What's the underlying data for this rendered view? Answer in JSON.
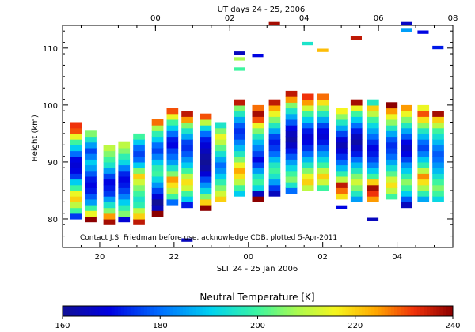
{
  "chart_data": {
    "type": "heatmap",
    "title": "UT days 24 - 25, 2006",
    "xlabel": "SLT 24 - 25 Jan 2006",
    "ylabel": "Height (km)",
    "bottom_axis": {
      "tick_labels": [
        "20",
        "22",
        "00",
        "02",
        "04"
      ],
      "tick_values_hours": [
        20,
        22,
        24,
        26,
        28
      ]
    },
    "top_axis": {
      "tick_labels": [
        "00",
        "02",
        "04",
        "06",
        "08"
      ],
      "tick_values_hours": [
        0,
        2,
        4,
        6,
        8
      ]
    },
    "xlim_hours": [
      19.0,
      29.5
    ],
    "ylim": [
      75,
      114
    ],
    "y_tick_labels": [
      "80",
      "90",
      "100",
      "110"
    ],
    "y_tick_values": [
      80,
      90,
      100,
      110
    ],
    "note": "Contact J.S. Friedman before use, acknowledge CDB, plotted 5-Apr-2011",
    "colorbar": {
      "title": "Neutral Temperature [K]",
      "range": [
        160,
        240
      ],
      "tick_labels": [
        "160",
        "180",
        "200",
        "220",
        "240"
      ],
      "tick_values": [
        160,
        180,
        200,
        220,
        240
      ]
    },
    "profile_width_hours": 0.3,
    "profiles": [
      {
        "t": 19.2,
        "h0": 80.0,
        "vals": [
          175,
          200,
          210,
          220,
          215,
          200,
          190,
          175,
          170,
          168,
          170,
          180,
          190,
          200,
          215,
          230,
          232
        ]
      },
      {
        "t": 19.6,
        "h0": 79.5,
        "vals": [
          240,
          215,
          200,
          185,
          178,
          172,
          170,
          172,
          178,
          185,
          190,
          182,
          176,
          185,
          195,
          205
        ]
      },
      {
        "t": 20.1,
        "h0": 79.0,
        "vals": [
          238,
          225,
          205,
          195,
          185,
          175,
          172,
          170,
          176,
          185,
          195,
          200,
          205,
          210
        ]
      },
      {
        "t": 20.5,
        "h0": 79.5,
        "vals": [
          168,
          205,
          198,
          190,
          182,
          176,
          172,
          170,
          173,
          182,
          192,
          198,
          205,
          210
        ]
      },
      {
        "t": 20.9,
        "h0": 79.0,
        "vals": [
          236,
          220,
          210,
          198,
          195,
          200,
          205,
          212,
          220,
          205,
          190,
          180,
          176,
          180,
          190,
          200
        ]
      },
      {
        "t": 21.4,
        "h0": 80.5,
        "vals": [
          240,
          165,
          160,
          168,
          176,
          184,
          192,
          200,
          198,
          190,
          182,
          176,
          180,
          190,
          198,
          208,
          228
        ]
      },
      {
        "t": 21.8,
        "h0": 82.5,
        "vals": [
          180,
          200,
          210,
          218,
          225,
          205,
          195,
          185,
          180,
          176,
          170,
          172,
          180,
          190,
          200,
          215,
          230
        ]
      },
      {
        "t": 22.2,
        "h0": 82.0,
        "vals": [
          172,
          190,
          200,
          212,
          218,
          210,
          200,
          190,
          184,
          178,
          174,
          176,
          186,
          195,
          205,
          225,
          236
        ]
      },
      {
        "t": 22.7,
        "h0": 81.5,
        "vals": [
          240,
          220,
          205,
          192,
          184,
          176,
          168,
          162,
          160,
          162,
          165,
          168,
          172,
          180,
          192,
          210,
          230
        ]
      },
      {
        "t": 23.1,
        "h0": 83.0,
        "vals": [
          220,
          212,
          205,
          198,
          190,
          184,
          180,
          186,
          194,
          202,
          210,
          215,
          205,
          195
        ]
      },
      {
        "t": 23.6,
        "h0": 84.0,
        "vals": [
          190,
          200,
          210,
          218,
          224,
          215,
          205,
          196,
          188,
          182,
          176,
          174,
          178,
          186,
          196,
          205,
          236
        ]
      },
      {
        "t": 24.1,
        "h0": 83.0,
        "vals": [
          240,
          165,
          192,
          200,
          195,
          185,
          176,
          170,
          176,
          182,
          188,
          196,
          205,
          215,
          230,
          238,
          228
        ]
      },
      {
        "t": 24.55,
        "h0": 84.0,
        "vals": [
          165,
          175,
          185,
          195,
          200,
          196,
          188,
          180,
          175,
          172,
          176,
          186,
          196,
          205,
          215,
          224,
          236
        ]
      },
      {
        "t": 25.0,
        "h0": 84.5,
        "vals": [
          180,
          195,
          205,
          200,
          192,
          185,
          178,
          172,
          166,
          162,
          165,
          170,
          178,
          186,
          195,
          205,
          225,
          236
        ]
      },
      {
        "t": 25.45,
        "h0": 85.0,
        "vals": [
          210,
          220,
          215,
          205,
          196,
          188,
          180,
          174,
          170,
          168,
          172,
          180,
          190,
          200,
          212,
          225,
          232
        ]
      },
      {
        "t": 25.85,
        "h0": 85.0,
        "vals": [
          200,
          212,
          220,
          210,
          200,
          192,
          185,
          178,
          172,
          168,
          170,
          176,
          186,
          196,
          206,
          218,
          228
        ]
      },
      {
        "t": 26.35,
        "h0": 83.5,
        "vals": [
          218,
          228,
          236,
          210,
          198,
          188,
          180,
          174,
          168,
          164,
          168,
          176,
          186,
          196,
          206,
          216
        ]
      },
      {
        "t": 26.75,
        "h0": 83.0,
        "vals": [
          185,
          196,
          205,
          212,
          205,
          196,
          188,
          180,
          172,
          166,
          162,
          165,
          172,
          180,
          190,
          200,
          215,
          238
        ]
      },
      {
        "t": 27.2,
        "h0": 83.0,
        "vals": [
          225,
          232,
          238,
          220,
          200,
          190,
          182,
          176,
          172,
          170,
          174,
          180,
          186,
          192,
          200,
          210,
          220,
          196
        ]
      },
      {
        "t": 27.7,
        "h0": 83.5,
        "vals": [
          200,
          210,
          218,
          212,
          202,
          194,
          186,
          180,
          176,
          174,
          178,
          186,
          196,
          206,
          215,
          225,
          240
        ]
      },
      {
        "t": 28.1,
        "h0": 82.0,
        "vals": [
          165,
          178,
          190,
          200,
          206,
          198,
          190,
          184,
          176,
          170,
          166,
          170,
          178,
          186,
          196,
          205,
          215,
          225
        ]
      },
      {
        "t": 28.55,
        "h0": 83.0,
        "vals": [
          186,
          198,
          208,
          218,
          226,
          210,
          198,
          190,
          182,
          176,
          180,
          188,
          196,
          206,
          218,
          230,
          215
        ]
      },
      {
        "t": 28.95,
        "h0": 83.0,
        "vals": [
          192,
          200,
          205,
          200,
          194,
          188,
          184,
          180,
          178,
          182,
          188,
          194,
          200,
          210,
          220,
          238
        ]
      }
    ],
    "isolated_blocks": [
      {
        "t": 22.2,
        "h": 76.0,
        "v": 165
      },
      {
        "t": 23.6,
        "h": 108.8,
        "v": 165
      },
      {
        "t": 23.6,
        "h": 107.8,
        "v": 208
      },
      {
        "t": 23.6,
        "h": 106.0,
        "v": 200
      },
      {
        "t": 24.1,
        "h": 108.4,
        "v": 170
      },
      {
        "t": 24.55,
        "h": 114.0,
        "v": 238
      },
      {
        "t": 25.45,
        "h": 110.5,
        "v": 195
      },
      {
        "t": 25.85,
        "h": 109.3,
        "v": 222
      },
      {
        "t": 26.35,
        "h": 81.8,
        "v": 170
      },
      {
        "t": 26.75,
        "h": 111.5,
        "v": 236
      },
      {
        "t": 27.2,
        "h": 79.6,
        "v": 165
      },
      {
        "t": 28.1,
        "h": 114.0,
        "v": 166
      },
      {
        "t": 28.1,
        "h": 112.8,
        "v": 185
      },
      {
        "t": 28.55,
        "h": 112.5,
        "v": 170
      },
      {
        "t": 28.95,
        "h": 109.8,
        "v": 172
      }
    ]
  }
}
